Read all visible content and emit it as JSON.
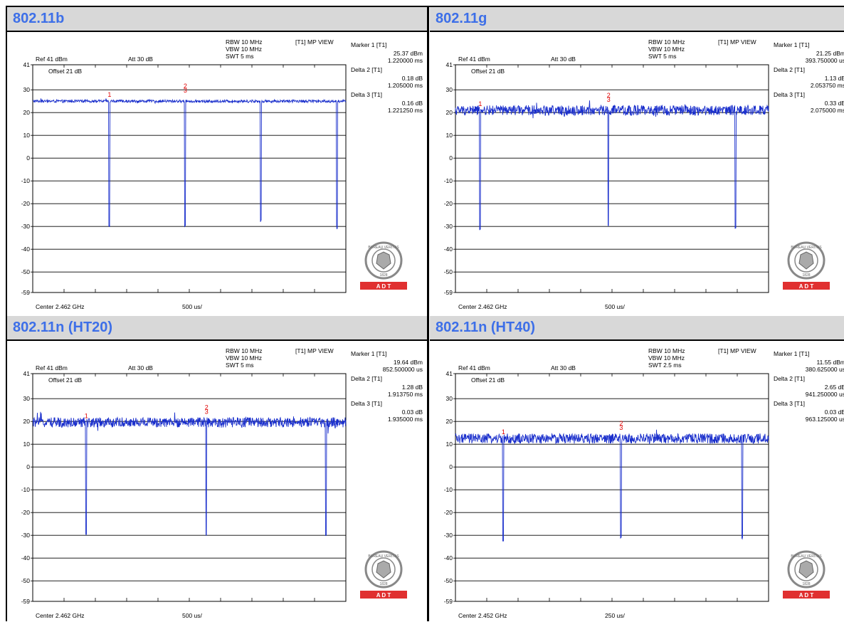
{
  "common": {
    "rbw": "RBW 10 MHz",
    "vbw": "VBW 10 MHz",
    "view": "[T1] MP VIEW",
    "ref": "Ref 41 dBm",
    "att": "Att 30 dB",
    "offset": "Offset 21 dB",
    "marker1_label": "Marker 1 [T1]",
    "delta2_label": "Delta 2 [T1]",
    "delta3_label": "Delta 3 [T1]",
    "logo": {
      "ring_text": "BUREAU VERITAS",
      "year": "1828",
      "bar_text": "A  D  T",
      "bar_color": "#e03030"
    },
    "colors": {
      "trace": "#1a2fcc",
      "marker": "#e00000",
      "grid": "#000000",
      "title": "#3d6fe8"
    }
  },
  "chart_data": [
    {
      "type": "line",
      "title": "802.11b",
      "swt": "SWT 5 ms",
      "center": "Center 2.462 GHz",
      "span_per_div": "500 us/",
      "ylim": [
        -59,
        41
      ],
      "y_ticks": [
        "41",
        "30",
        "20",
        "10",
        "0",
        "-10",
        "-20",
        "-30",
        "-40",
        "-50",
        "-59"
      ],
      "x_range_ms": [
        0,
        5
      ],
      "baseline_dbm": 25,
      "noise_db": 0.6,
      "dip_times_ms": [
        1.22,
        2.43,
        3.64,
        4.86
      ],
      "dip_depths_dbm": [
        -29.5,
        -30,
        -27.5,
        -30.5
      ],
      "markers": [
        {
          "id": "1",
          "x_ms": 1.22
        },
        {
          "id": "2",
          "x_ms": 2.43
        },
        {
          "id": "3",
          "x_ms": 2.43
        }
      ],
      "marker_readout": {
        "m1_value": "25.37 dBm",
        "m1_pos": "1.220000 ms",
        "d2_value": "0.18 dB",
        "d2_pos": "1.205000 ms",
        "d3_value": "0.16 dB",
        "d3_pos": "1.221250 ms"
      }
    },
    {
      "type": "line",
      "title": "802.11g",
      "swt": "SWT 5 ms",
      "center": "Center 2.462 GHz",
      "span_per_div": "500 us/",
      "ylim": [
        -59,
        41
      ],
      "y_ticks": [
        "41",
        "30",
        "20",
        "10",
        "0",
        "-10",
        "-20",
        "-30",
        "-40",
        "-50",
        "-59"
      ],
      "x_range_ms": [
        0,
        5
      ],
      "baseline_dbm": 21,
      "noise_db": 2.2,
      "dip_times_ms": [
        0.39,
        2.44,
        4.47
      ],
      "dip_depths_dbm": [
        -31,
        -30,
        -30.5
      ],
      "markers": [
        {
          "id": "1",
          "x_ms": 0.39
        },
        {
          "id": "2",
          "x_ms": 2.44
        },
        {
          "id": "3",
          "x_ms": 2.44
        }
      ],
      "marker_readout": {
        "m1_value": "21.25 dBm",
        "m1_pos": "393.750000 us",
        "d2_value": "1.13 dB",
        "d2_pos": "2.053750 ms",
        "d3_value": "0.33 dB",
        "d3_pos": "2.075000 ms"
      }
    },
    {
      "type": "line",
      "title": "802.11n (HT20)",
      "swt": "SWT 5 ms",
      "center": "Center 2.462 GHz",
      "span_per_div": "500 us/",
      "ylim": [
        -59,
        41
      ],
      "y_ticks": [
        "41",
        "30",
        "20",
        "10",
        "0",
        "-10",
        "-20",
        "-30",
        "-40",
        "-50",
        "-59"
      ],
      "x_range_ms": [
        0,
        5
      ],
      "baseline_dbm": 19.6,
      "noise_db": 2.2,
      "dip_times_ms": [
        0.85,
        2.77,
        4.68
      ],
      "dip_depths_dbm": [
        -30,
        -30,
        -30
      ],
      "markers": [
        {
          "id": "1",
          "x_ms": 0.85
        },
        {
          "id": "2",
          "x_ms": 2.77
        },
        {
          "id": "3",
          "x_ms": 2.77
        }
      ],
      "marker_readout": {
        "m1_value": "19.64 dBm",
        "m1_pos": "852.500000 us",
        "d2_value": "1.28 dB",
        "d2_pos": "1.913750 ms",
        "d3_value": "0.03 dB",
        "d3_pos": "1.935000 ms"
      }
    },
    {
      "type": "line",
      "title": "802.11n (HT40)",
      "swt": "SWT 2.5 ms",
      "center": "Center 2.452 GHz",
      "span_per_div": "250 us/",
      "ylim": [
        -59,
        41
      ],
      "y_ticks": [
        "41",
        "30",
        "20",
        "10",
        "0",
        "-10",
        "-20",
        "-30",
        "-40",
        "-50",
        "-59"
      ],
      "x_range_ms": [
        0,
        2.5
      ],
      "baseline_dbm": 12.5,
      "noise_db": 2.2,
      "dip_times_ms": [
        0.38,
        1.32,
        2.29
      ],
      "dip_depths_dbm": [
        -32,
        -31,
        -31
      ],
      "markers": [
        {
          "id": "1",
          "x_ms": 0.38
        },
        {
          "id": "2",
          "x_ms": 1.32
        },
        {
          "id": "3",
          "x_ms": 1.32
        }
      ],
      "marker_readout": {
        "m1_value": "11.55 dBm",
        "m1_pos": "380.625000 us",
        "d2_value": "2.65 dB",
        "d2_pos": "941.250000 us",
        "d3_value": "0.03 dB",
        "d3_pos": "963.125000 us"
      }
    }
  ]
}
